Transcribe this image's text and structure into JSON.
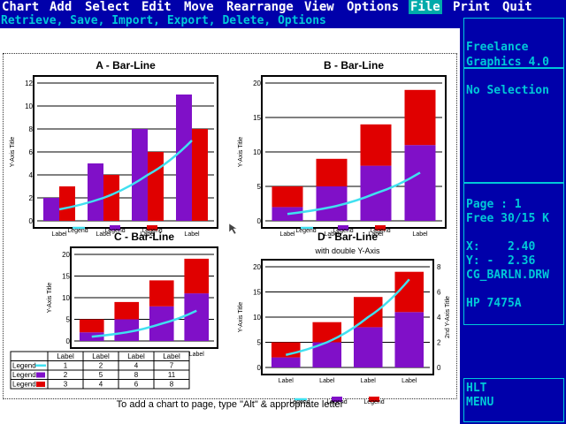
{
  "menu": {
    "items": [
      "Chart",
      "Add",
      "Select",
      "Edit",
      "Move",
      "Rearrange",
      "View",
      "Options",
      "File",
      "Print",
      "Quit"
    ],
    "active": "File",
    "submenu": "Retrieve, Save, Import, Export, Delete, Options"
  },
  "side_panel": {
    "app_title_1": "Freelance",
    "app_title_2": "Graphics 4.0",
    "selection": "No Selection",
    "page_line": "Page : 1",
    "free_line": "Free 30/15 K",
    "x_line": "X:    2.40",
    "y_line": "Y: -  2.36",
    "filename": "CG_BARLN.DRW",
    "printer": "HP 7475A",
    "hlt": "HLT",
    "menu_label": "MENU"
  },
  "status_message": "To add a chart to page, type \"Alt\" & appropriate letter",
  "colors": {
    "menu_bg": "#0000aa",
    "menu_fg": "#ffffff",
    "cyan": "#00c8d8",
    "purple": "#8010c8",
    "red": "#e00000",
    "line": "#40e0f0"
  },
  "chart_data": [
    {
      "type": "bar",
      "title": "A - Bar-Line",
      "subtitle": "",
      "ylabel": "Y-Axis Title",
      "categories": [
        "Label",
        "Label",
        "Label",
        "Label"
      ],
      "ylim": [
        0,
        12
      ],
      "yticks": [
        0,
        2,
        4,
        6,
        8,
        10,
        12
      ],
      "stacked": false,
      "series": [
        {
          "kind": "bar",
          "values": [
            2,
            5,
            8,
            11
          ]
        },
        {
          "kind": "bar",
          "values": [
            3,
            4,
            6,
            8
          ]
        },
        {
          "kind": "line",
          "values": [
            1,
            2,
            4,
            7
          ]
        }
      ],
      "legend": [
        "Legend",
        "Legend",
        "Legend"
      ]
    },
    {
      "type": "bar",
      "title": "B - Bar-Line",
      "subtitle": "",
      "ylabel": "Y-Axis Title",
      "categories": [
        "Label",
        "Label",
        "Label",
        "Label"
      ],
      "ylim": [
        0,
        20
      ],
      "yticks": [
        0,
        5,
        10,
        15,
        20
      ],
      "stacked": true,
      "series": [
        {
          "kind": "bar",
          "values": [
            2,
            5,
            8,
            11
          ]
        },
        {
          "kind": "bar",
          "values": [
            3,
            4,
            6,
            8
          ]
        },
        {
          "kind": "line",
          "values": [
            1,
            2,
            4,
            7
          ]
        }
      ],
      "legend": [
        "Legend",
        "Legend",
        "Legend"
      ]
    },
    {
      "type": "bar",
      "title": "C - Bar-Line",
      "subtitle": "",
      "ylabel": "Y-Axis Title",
      "categories": [
        "Label",
        "Label",
        "Label",
        "Label"
      ],
      "ylim": [
        0,
        20
      ],
      "yticks": [
        0,
        5,
        10,
        15,
        20
      ],
      "stacked": true,
      "series": [
        {
          "kind": "bar",
          "values": [
            2,
            5,
            8,
            11
          ]
        },
        {
          "kind": "bar",
          "values": [
            3,
            4,
            6,
            8
          ]
        },
        {
          "kind": "line",
          "values": [
            1,
            2,
            4,
            7
          ]
        }
      ],
      "table": {
        "header": [
          "Label",
          "Label",
          "Label",
          "Label"
        ],
        "rows": [
          {
            "name": "Legend",
            "values": [
              "1",
              "2",
              "4",
              "7"
            ]
          },
          {
            "name": "Legend",
            "values": [
              "2",
              "5",
              "8",
              "11"
            ]
          },
          {
            "name": "Legend",
            "values": [
              "3",
              "4",
              "6",
              "8"
            ]
          }
        ]
      }
    },
    {
      "type": "bar",
      "title": "D - Bar-Line",
      "subtitle": "with double Y-Axis",
      "ylabel": "Y-Axis Title",
      "y2label": "2nd Y-Axis Title",
      "categories": [
        "Label",
        "Label",
        "Label",
        "Label"
      ],
      "ylim": [
        0,
        20
      ],
      "yticks": [
        0,
        5,
        10,
        15,
        20
      ],
      "y2lim": [
        0,
        8
      ],
      "y2ticks": [
        0,
        2,
        4,
        6,
        8
      ],
      "stacked": true,
      "series": [
        {
          "kind": "bar",
          "values": [
            2,
            5,
            8,
            11
          ]
        },
        {
          "kind": "bar",
          "values": [
            3,
            4,
            6,
            8
          ]
        },
        {
          "kind": "line",
          "values": [
            1,
            2,
            4,
            7
          ],
          "axis": "y2"
        }
      ],
      "legend": [
        "Legend",
        "Legend",
        "Legend"
      ]
    }
  ]
}
